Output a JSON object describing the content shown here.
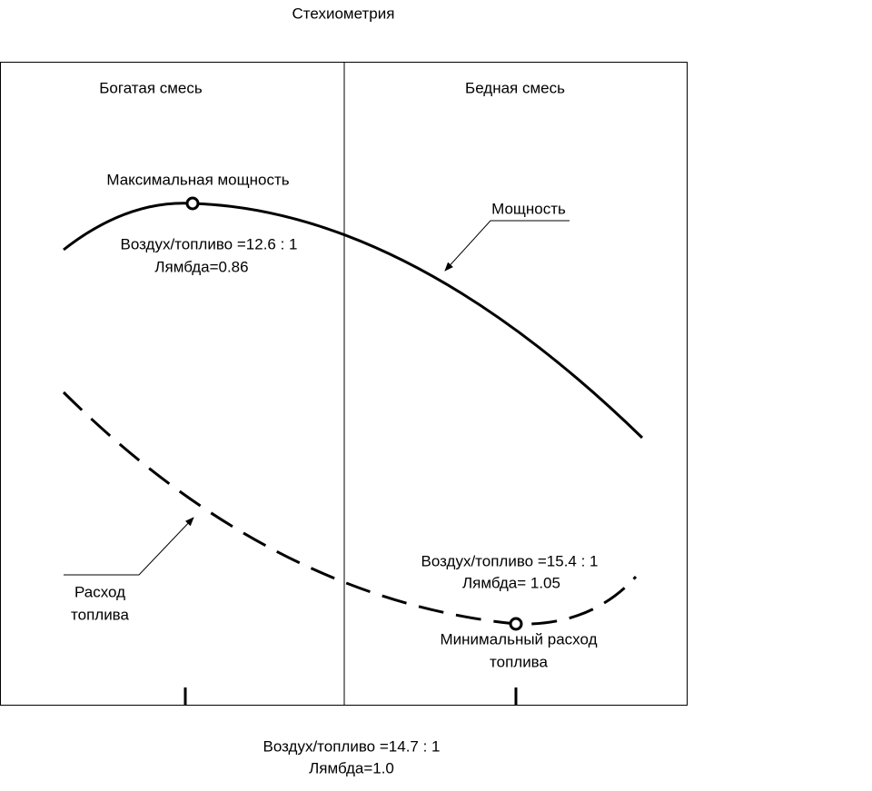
{
  "title": "Стехиометрия",
  "regions": {
    "rich": "Богатая смесь",
    "lean": "Бедная смесь"
  },
  "power": {
    "label": "Мощность",
    "max_label": "Максимальная мощность",
    "ratio": "Воздух/топливо =12.6 : 1",
    "lambda": "Лямбда=0.86"
  },
  "fuel": {
    "label_line1": "Расход",
    "label_line2": "топлива",
    "min_line1": "Минимальный расход",
    "min_line2": "топлива",
    "ratio": "Воздух/топливо =15.4 : 1",
    "lambda": "Лямбда= 1.05"
  },
  "stoich": {
    "ratio": "Воздух/топливо =14.7 : 1",
    "lambda": "Лямбда=1.0"
  }
}
